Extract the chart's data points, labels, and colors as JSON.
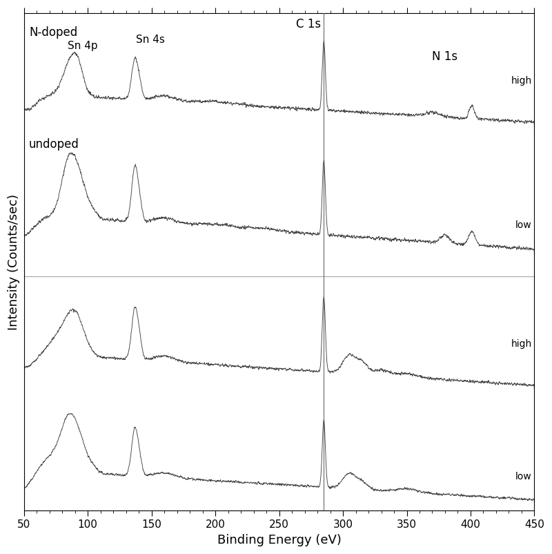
{
  "x_min": 50,
  "x_max": 450,
  "xlabel": "Binding Energy (eV)",
  "ylabel": "Intensity (Counts/sec)",
  "label_ndoped": "N-doped",
  "label_undoped": "undoped",
  "label_c1s": "C 1s",
  "label_sn4p": "Sn 4p",
  "label_sn4s": "Sn 4s",
  "label_n1s": "N 1s",
  "label_high": "high",
  "label_low": "low",
  "c1s_energy": 285.0,
  "sn4p_energy": 87.0,
  "sn4s_energy": 137.0,
  "n1s_energy": 401.0,
  "line_color": "#444444",
  "divider_color": "#aaaaaa",
  "background_color": "#ffffff",
  "seed": 12345
}
